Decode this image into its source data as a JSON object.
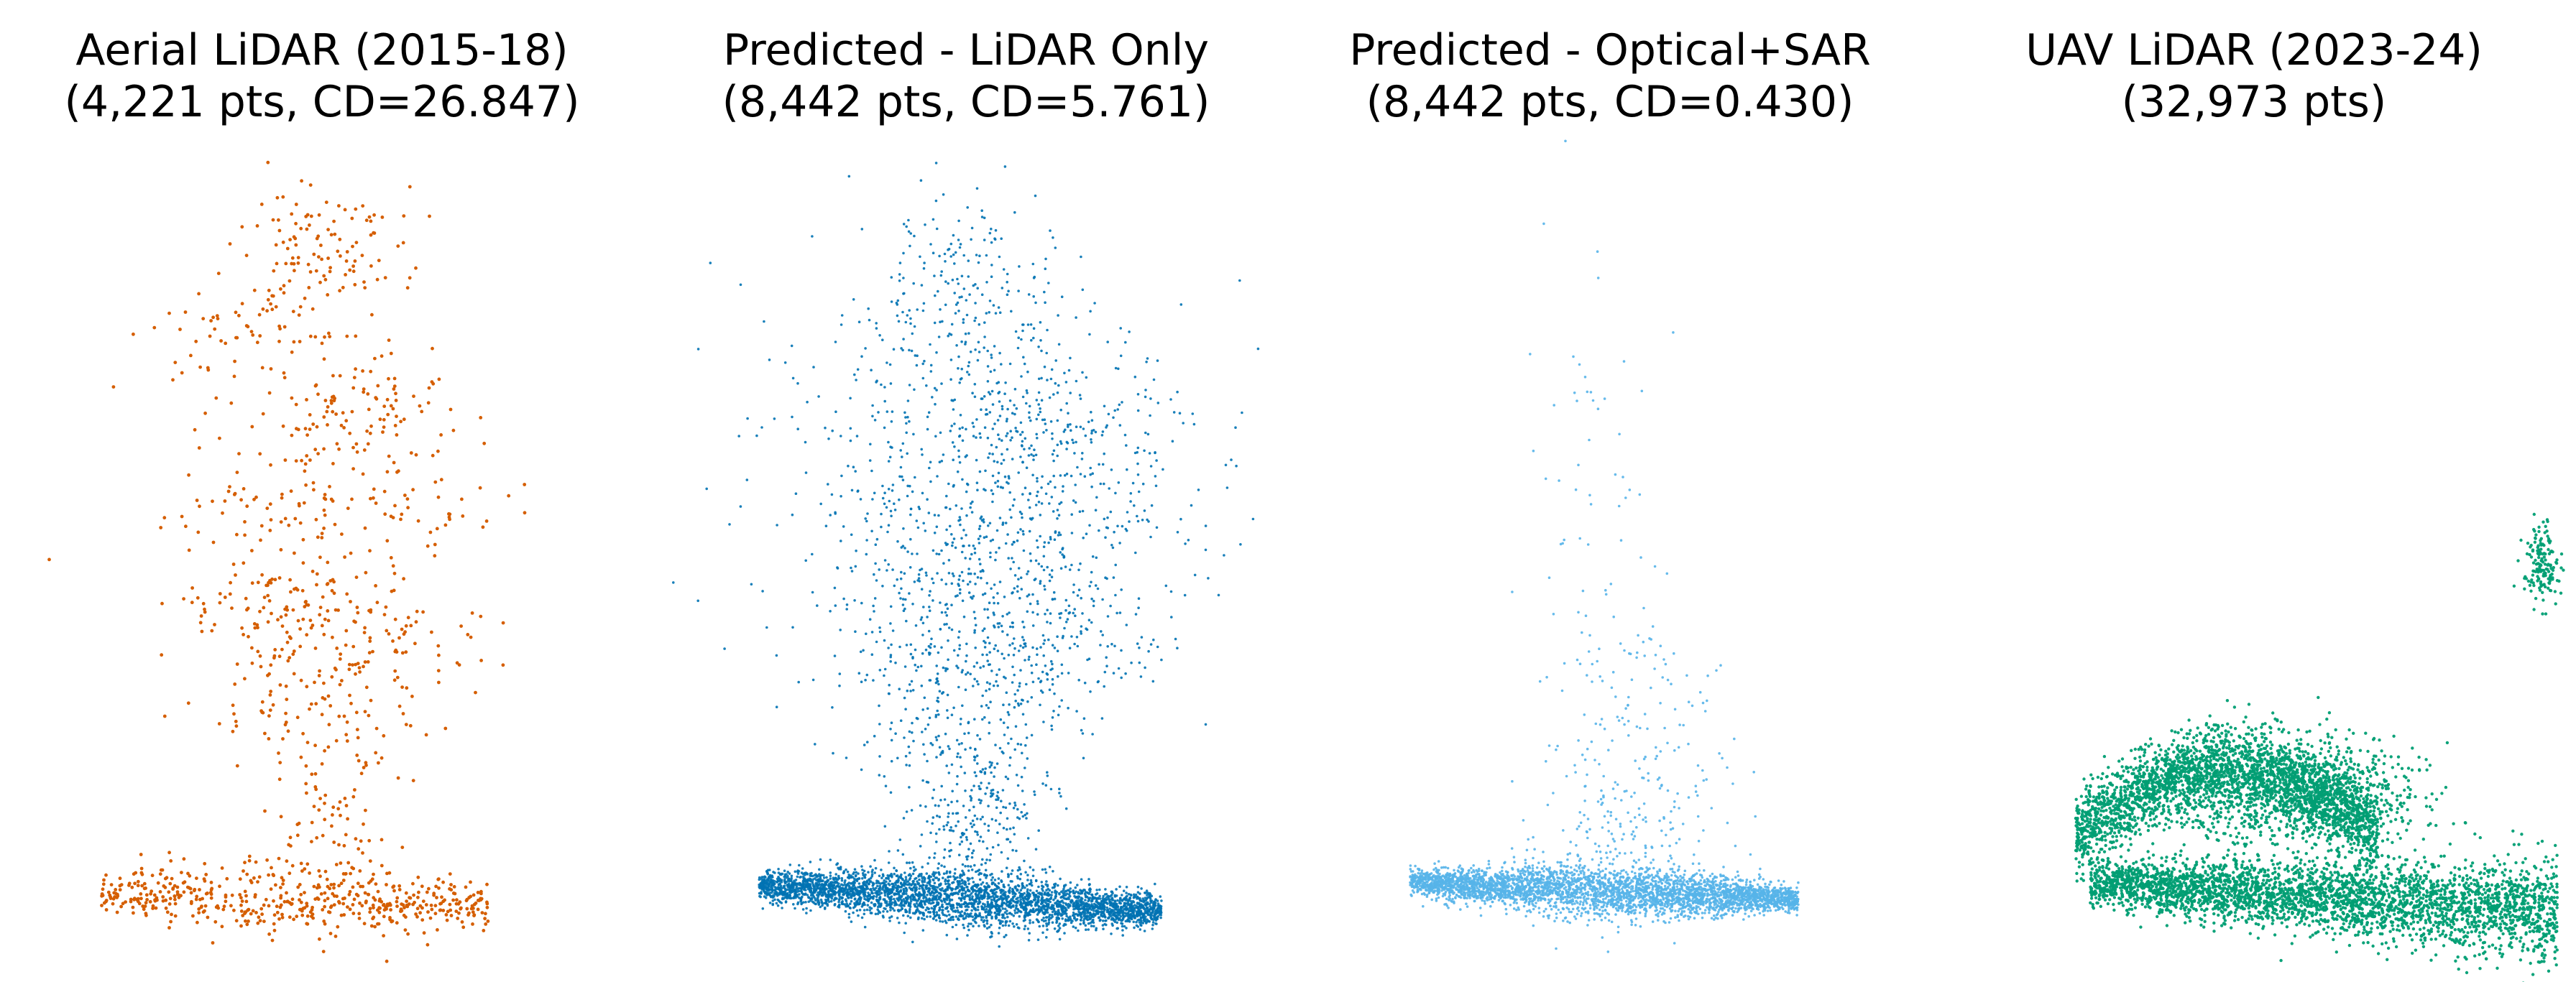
{
  "figure": {
    "panels": [
      {
        "title_line1": "Aerial LiDAR (2015-18)",
        "title_line2": "(4,221 pts, CD=26.847)"
      },
      {
        "title_line1": "Predicted - LiDAR Only",
        "title_line2": "(8,442 pts, CD=5.761)"
      },
      {
        "title_line1": "Predicted - Optical+SAR",
        "title_line2": "(8,442 pts, CD=0.430)"
      },
      {
        "title_line1": "UAV LiDAR (2023-24)",
        "title_line2": "(32,973 pts)"
      }
    ]
  },
  "chart_data": [
    {
      "type": "scatter",
      "title": "Aerial LiDAR (2015-18)\n(4,221 pts, CD=26.847)",
      "color": "#d55e00",
      "point_count": 4221,
      "chamfer_distance": 26.847,
      "axes_visible": false,
      "shape": "sparse tall tree crown over a scattered ground layer"
    },
    {
      "type": "scatter",
      "title": "Predicted - LiDAR Only\n(8,442 pts, CD=5.761)",
      "color": "#0072b2",
      "point_count": 8442,
      "chamfer_distance": 5.761,
      "axes_visible": false,
      "shape": "dense ground layer with a tall diffuse crown"
    },
    {
      "type": "scatter",
      "title": "Predicted - Optical+SAR\n(8,442 pts, CD=0.430)",
      "color": "#56b4e9",
      "point_count": 8442,
      "chamfer_distance": 0.43,
      "axes_visible": false,
      "shape": "dense ground layer with few scattered points above"
    },
    {
      "type": "scatter",
      "title": "UAV LiDAR (2023-24)\n(32,973 pts)",
      "color": "#009e73",
      "point_count": 32973,
      "axes_visible": false,
      "shape": "very dense ground and low vegetation with a small isolated cluster at right"
    }
  ]
}
